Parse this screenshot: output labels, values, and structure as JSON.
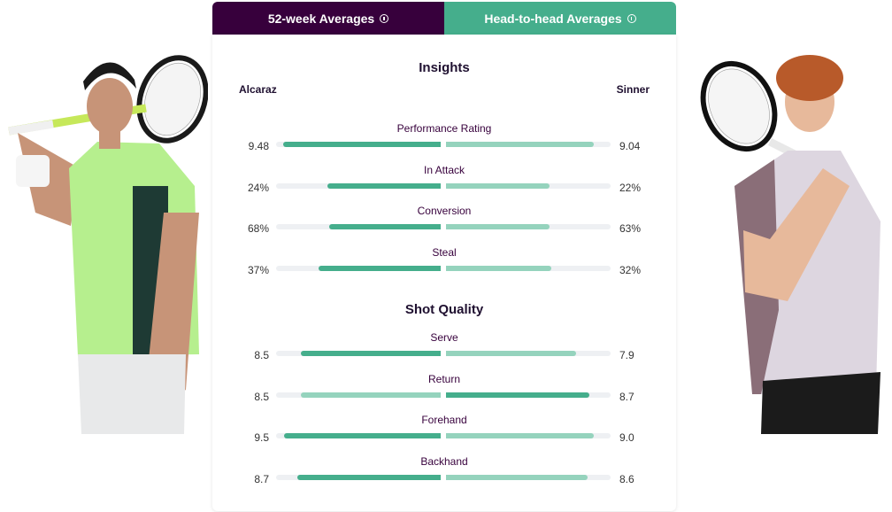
{
  "tabs": {
    "left_label": "52-week Averages",
    "right_label": "Head-to-head Averages"
  },
  "players": {
    "left": "Alcaraz",
    "right": "Sinner"
  },
  "colors": {
    "primary": "#37003c",
    "accent": "#45ae8c",
    "accent_light": "#95d3bd",
    "track": "#eef0f3"
  },
  "sections": [
    {
      "title": "Insights",
      "stats": [
        {
          "label": "Performance Rating",
          "left": "9.48",
          "right": "9.04",
          "left_pct": 0.955,
          "right_pct": 0.9,
          "leader": "left"
        },
        {
          "label": "In Attack",
          "left": "24%",
          "right": "22%",
          "left_pct": 0.69,
          "right_pct": 0.63,
          "leader": "left"
        },
        {
          "label": "Conversion",
          "left": "68%",
          "right": "63%",
          "left_pct": 0.68,
          "right_pct": 0.63,
          "leader": "left"
        },
        {
          "label": "Steal",
          "left": "37%",
          "right": "32%",
          "left_pct": 0.74,
          "right_pct": 0.64,
          "leader": "left"
        }
      ]
    },
    {
      "title": "Shot Quality",
      "stats": [
        {
          "label": "Serve",
          "left": "8.5",
          "right": "7.9",
          "left_pct": 0.85,
          "right_pct": 0.79,
          "leader": "left"
        },
        {
          "label": "Return",
          "left": "8.5",
          "right": "8.7",
          "left_pct": 0.85,
          "right_pct": 0.87,
          "leader": "right"
        },
        {
          "label": "Forehand",
          "left": "9.5",
          "right": "9.0",
          "left_pct": 0.95,
          "right_pct": 0.9,
          "leader": "left"
        },
        {
          "label": "Backhand",
          "left": "8.7",
          "right": "8.6",
          "left_pct": 0.87,
          "right_pct": 0.86,
          "leader": "left"
        }
      ]
    }
  ]
}
